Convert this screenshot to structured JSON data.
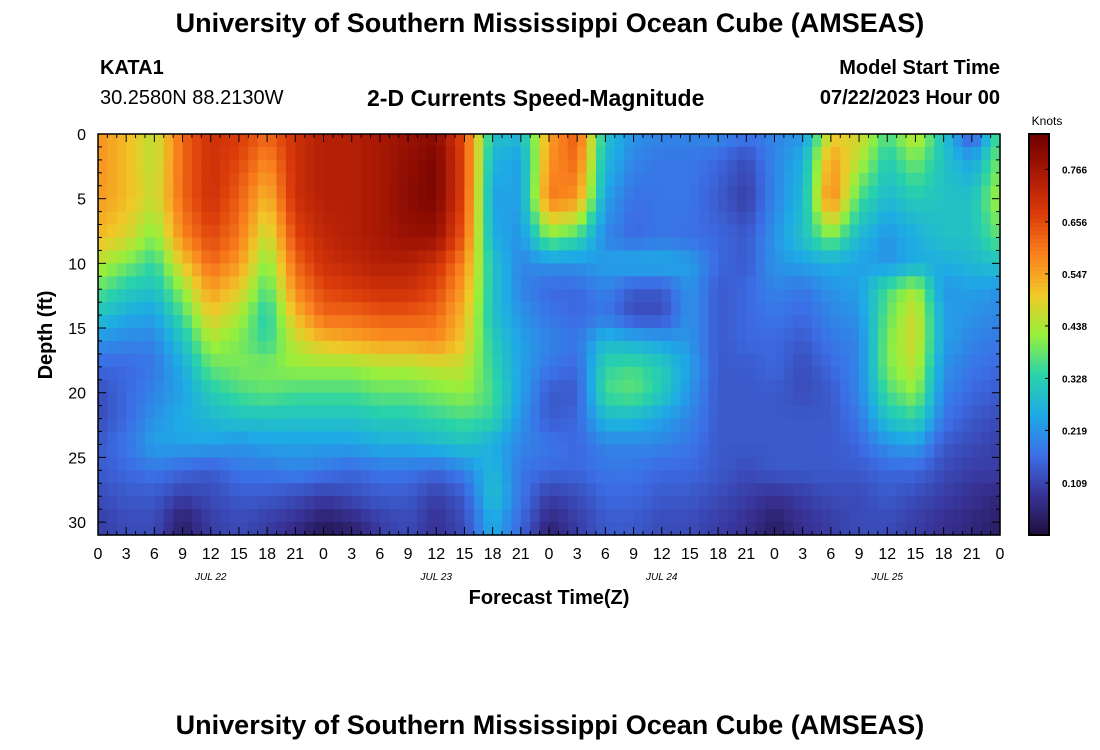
{
  "header": {
    "title": "University of Southern Mississippi Ocean Cube (AMSEAS)",
    "station": "KATA1",
    "coords": "30.2580N  88.2130W",
    "subtitle": "2-D Currents Speed-Magnitude",
    "start_label": "Model Start Time",
    "start_value": "07/22/2023 Hour 00"
  },
  "footer": {
    "title": "University of Southern Mississippi Ocean Cube (AMSEAS)"
  },
  "chart_data": {
    "type": "heatmap",
    "title": "2-D Currents Speed-Magnitude",
    "xlabel": "Forecast Time(Z)",
    "ylabel": "Depth (ft)",
    "colorbar_label": "Knots",
    "x_unit": "hours from 07/22/2023 00Z",
    "xlim": [
      0,
      96
    ],
    "ylim": [
      31,
      0
    ],
    "y_ticks": [
      "0",
      "5",
      "10",
      "15",
      "20",
      "25",
      "30"
    ],
    "x_ticks": [
      "0",
      "3",
      "6",
      "9",
      "12",
      "15",
      "18",
      "21",
      "0",
      "3",
      "6",
      "9",
      "12",
      "15",
      "18",
      "21",
      "0",
      "3",
      "6",
      "9",
      "12",
      "15",
      "18",
      "21",
      "0",
      "3",
      "6",
      "9",
      "12",
      "15",
      "18",
      "21",
      "0"
    ],
    "date_labels": [
      "JUL 22",
      "JUL 23",
      "JUL 24",
      "JUL 25"
    ],
    "colorbar_ticks": [
      "0.766",
      "0.656",
      "0.547",
      "0.438",
      "0.328",
      "0.219",
      "0.109"
    ],
    "colorbar_range": [
      0,
      0.84
    ],
    "depths_ft": [
      0,
      2,
      5,
      8,
      10,
      12,
      14,
      16,
      18,
      20,
      22,
      24,
      26,
      28,
      30,
      31
    ],
    "times_h": [
      0,
      3,
      6,
      9,
      12,
      15,
      18,
      21,
      24,
      27,
      30,
      33,
      36,
      39,
      42,
      45,
      48,
      51,
      54,
      57,
      60,
      63,
      66,
      69,
      72,
      75,
      78,
      81,
      84,
      87,
      90,
      93,
      96
    ],
    "speed_knots": [
      [
        0.57,
        0.52,
        0.45,
        0.62,
        0.7,
        0.68,
        0.62,
        0.7,
        0.74,
        0.74,
        0.76,
        0.78,
        0.8,
        0.65,
        0.3,
        0.28,
        0.55,
        0.64,
        0.3,
        0.22,
        0.2,
        0.2,
        0.21,
        0.18,
        0.2,
        0.22,
        0.49,
        0.48,
        0.36,
        0.47,
        0.3,
        0.12,
        0.38
      ],
      [
        0.57,
        0.52,
        0.45,
        0.62,
        0.7,
        0.66,
        0.58,
        0.7,
        0.74,
        0.74,
        0.76,
        0.79,
        0.82,
        0.66,
        0.27,
        0.24,
        0.57,
        0.62,
        0.28,
        0.2,
        0.18,
        0.18,
        0.16,
        0.12,
        0.2,
        0.26,
        0.56,
        0.45,
        0.32,
        0.4,
        0.3,
        0.24,
        0.4
      ],
      [
        0.56,
        0.52,
        0.46,
        0.62,
        0.7,
        0.63,
        0.52,
        0.7,
        0.74,
        0.74,
        0.76,
        0.8,
        0.82,
        0.66,
        0.24,
        0.24,
        0.6,
        0.57,
        0.24,
        0.17,
        0.18,
        0.18,
        0.14,
        0.1,
        0.2,
        0.28,
        0.6,
        0.36,
        0.28,
        0.32,
        0.3,
        0.3,
        0.44
      ],
      [
        0.52,
        0.48,
        0.4,
        0.58,
        0.66,
        0.6,
        0.45,
        0.66,
        0.72,
        0.74,
        0.76,
        0.78,
        0.78,
        0.63,
        0.26,
        0.22,
        0.4,
        0.35,
        0.2,
        0.16,
        0.18,
        0.17,
        0.16,
        0.14,
        0.22,
        0.3,
        0.4,
        0.28,
        0.22,
        0.26,
        0.3,
        0.3,
        0.38
      ],
      [
        0.45,
        0.4,
        0.34,
        0.5,
        0.62,
        0.56,
        0.4,
        0.62,
        0.7,
        0.72,
        0.74,
        0.74,
        0.7,
        0.58,
        0.3,
        0.2,
        0.22,
        0.22,
        0.24,
        0.26,
        0.26,
        0.24,
        0.16,
        0.14,
        0.22,
        0.24,
        0.26,
        0.24,
        0.22,
        0.26,
        0.26,
        0.28,
        0.3
      ],
      [
        0.38,
        0.32,
        0.3,
        0.42,
        0.56,
        0.5,
        0.36,
        0.58,
        0.66,
        0.68,
        0.7,
        0.7,
        0.66,
        0.55,
        0.3,
        0.2,
        0.16,
        0.16,
        0.2,
        0.14,
        0.14,
        0.22,
        0.14,
        0.16,
        0.2,
        0.18,
        0.22,
        0.24,
        0.36,
        0.44,
        0.22,
        0.24,
        0.22
      ],
      [
        0.3,
        0.26,
        0.24,
        0.36,
        0.5,
        0.44,
        0.32,
        0.52,
        0.62,
        0.62,
        0.64,
        0.64,
        0.62,
        0.52,
        0.3,
        0.22,
        0.18,
        0.16,
        0.18,
        0.12,
        0.12,
        0.22,
        0.14,
        0.16,
        0.18,
        0.16,
        0.2,
        0.22,
        0.38,
        0.48,
        0.24,
        0.22,
        0.2
      ],
      [
        0.22,
        0.2,
        0.2,
        0.3,
        0.44,
        0.4,
        0.34,
        0.46,
        0.52,
        0.54,
        0.56,
        0.56,
        0.58,
        0.5,
        0.32,
        0.24,
        0.2,
        0.18,
        0.28,
        0.26,
        0.24,
        0.22,
        0.14,
        0.16,
        0.16,
        0.14,
        0.18,
        0.2,
        0.4,
        0.48,
        0.24,
        0.2,
        0.18
      ],
      [
        0.16,
        0.16,
        0.18,
        0.26,
        0.38,
        0.4,
        0.4,
        0.42,
        0.42,
        0.42,
        0.44,
        0.44,
        0.46,
        0.46,
        0.34,
        0.24,
        0.18,
        0.16,
        0.34,
        0.36,
        0.32,
        0.24,
        0.14,
        0.14,
        0.16,
        0.12,
        0.16,
        0.2,
        0.4,
        0.46,
        0.22,
        0.18,
        0.16
      ],
      [
        0.12,
        0.16,
        0.2,
        0.24,
        0.32,
        0.36,
        0.38,
        0.36,
        0.36,
        0.36,
        0.38,
        0.38,
        0.4,
        0.42,
        0.36,
        0.24,
        0.14,
        0.14,
        0.36,
        0.38,
        0.32,
        0.22,
        0.14,
        0.14,
        0.14,
        0.12,
        0.14,
        0.2,
        0.36,
        0.42,
        0.2,
        0.16,
        0.14
      ],
      [
        0.12,
        0.16,
        0.22,
        0.26,
        0.28,
        0.3,
        0.3,
        0.3,
        0.3,
        0.3,
        0.32,
        0.32,
        0.34,
        0.36,
        0.34,
        0.22,
        0.14,
        0.16,
        0.28,
        0.28,
        0.24,
        0.2,
        0.14,
        0.14,
        0.14,
        0.14,
        0.14,
        0.18,
        0.3,
        0.34,
        0.18,
        0.14,
        0.12
      ],
      [
        0.14,
        0.18,
        0.24,
        0.24,
        0.24,
        0.22,
        0.24,
        0.24,
        0.24,
        0.24,
        0.26,
        0.26,
        0.28,
        0.3,
        0.26,
        0.2,
        0.18,
        0.16,
        0.2,
        0.2,
        0.2,
        0.18,
        0.14,
        0.14,
        0.14,
        0.14,
        0.14,
        0.16,
        0.22,
        0.24,
        0.14,
        0.12,
        0.1
      ],
      [
        0.14,
        0.16,
        0.18,
        0.16,
        0.14,
        0.18,
        0.18,
        0.2,
        0.18,
        0.16,
        0.18,
        0.18,
        0.16,
        0.2,
        0.28,
        0.18,
        0.16,
        0.16,
        0.18,
        0.18,
        0.16,
        0.16,
        0.14,
        0.12,
        0.14,
        0.14,
        0.14,
        0.14,
        0.16,
        0.16,
        0.12,
        0.1,
        0.1
      ],
      [
        0.12,
        0.14,
        0.14,
        0.1,
        0.12,
        0.14,
        0.14,
        0.12,
        0.1,
        0.12,
        0.14,
        0.14,
        0.1,
        0.14,
        0.3,
        0.18,
        0.1,
        0.12,
        0.16,
        0.16,
        0.14,
        0.14,
        0.12,
        0.1,
        0.08,
        0.1,
        0.12,
        0.12,
        0.14,
        0.12,
        0.1,
        0.08,
        0.06
      ],
      [
        0.1,
        0.12,
        0.12,
        0.04,
        0.1,
        0.12,
        0.1,
        0.08,
        0.04,
        0.06,
        0.1,
        0.12,
        0.08,
        0.12,
        0.26,
        0.16,
        0.06,
        0.1,
        0.14,
        0.14,
        0.12,
        0.12,
        0.1,
        0.08,
        0.04,
        0.08,
        0.1,
        0.12,
        0.12,
        0.1,
        0.08,
        0.06,
        0.04
      ],
      [
        0.1,
        0.12,
        0.12,
        0.04,
        0.1,
        0.12,
        0.1,
        0.06,
        0.02,
        0.04,
        0.1,
        0.12,
        0.08,
        0.12,
        0.26,
        0.16,
        0.04,
        0.1,
        0.14,
        0.14,
        0.12,
        0.12,
        0.1,
        0.08,
        0.03,
        0.08,
        0.1,
        0.12,
        0.12,
        0.1,
        0.08,
        0.06,
        0.04
      ]
    ]
  }
}
